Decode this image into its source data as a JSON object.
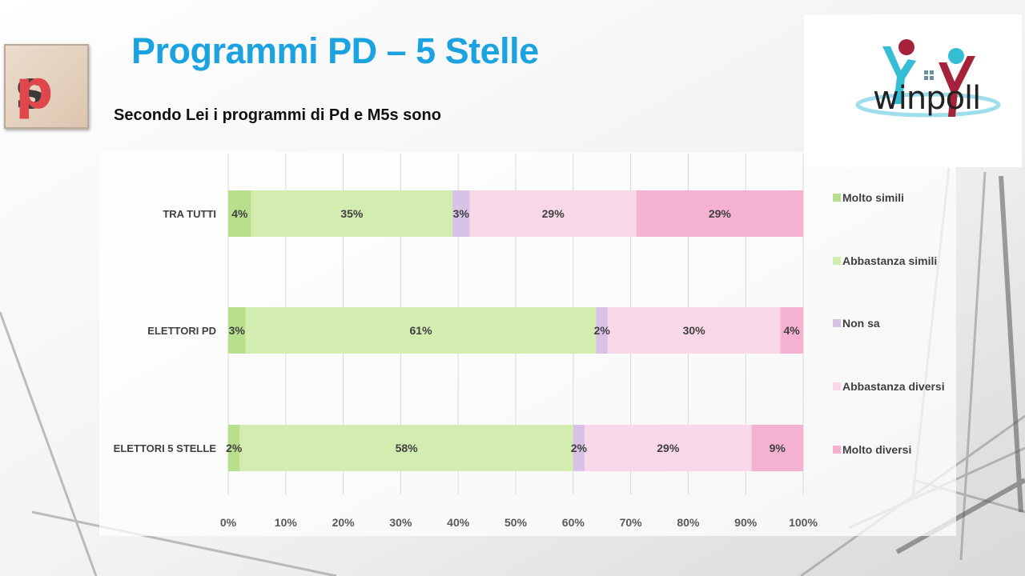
{
  "slide": {
    "title": "Programmi PD – 5 Stelle",
    "subtitle": "Secondo Lei i programmi di Pd e M5s sono",
    "logo_left": "sp",
    "logo_right": "winpoll"
  },
  "chart_data": {
    "type": "bar",
    "orientation": "horizontal",
    "stacked": true,
    "categories": [
      "TRA TUTTI",
      "ELETTORI PD",
      "ELETTORI 5 STELLE"
    ],
    "series": [
      {
        "name": "Molto simili",
        "color": "#b8e08c",
        "values": [
          4,
          3,
          2
        ],
        "labels": [
          "4%",
          "3%",
          "2%"
        ]
      },
      {
        "name": "Abbastanza simili",
        "color": "#d3ecb0",
        "values": [
          35,
          61,
          58
        ],
        "labels": [
          "35%",
          "61%",
          "58%"
        ]
      },
      {
        "name": "Non sa",
        "color": "#d8c2e6",
        "values": [
          3,
          2,
          2
        ],
        "labels": [
          "3%",
          "2%",
          "2%"
        ]
      },
      {
        "name": "Abbastanza diversi",
        "color": "#f8d8e8",
        "values": [
          29,
          30,
          29
        ],
        "labels": [
          "29%",
          "30%",
          "29%"
        ]
      },
      {
        "name": "Molto diversi",
        "color": "#f4b2d0",
        "values": [
          29,
          4,
          9
        ],
        "labels": [
          "29%",
          "4%",
          "9%"
        ]
      }
    ],
    "x_ticks": [
      "0%",
      "10%",
      "20%",
      "30%",
      "40%",
      "50%",
      "60%",
      "70%",
      "80%",
      "90%",
      "100%"
    ],
    "xlim": [
      0,
      100
    ],
    "grid": true,
    "legend_position": "right"
  }
}
